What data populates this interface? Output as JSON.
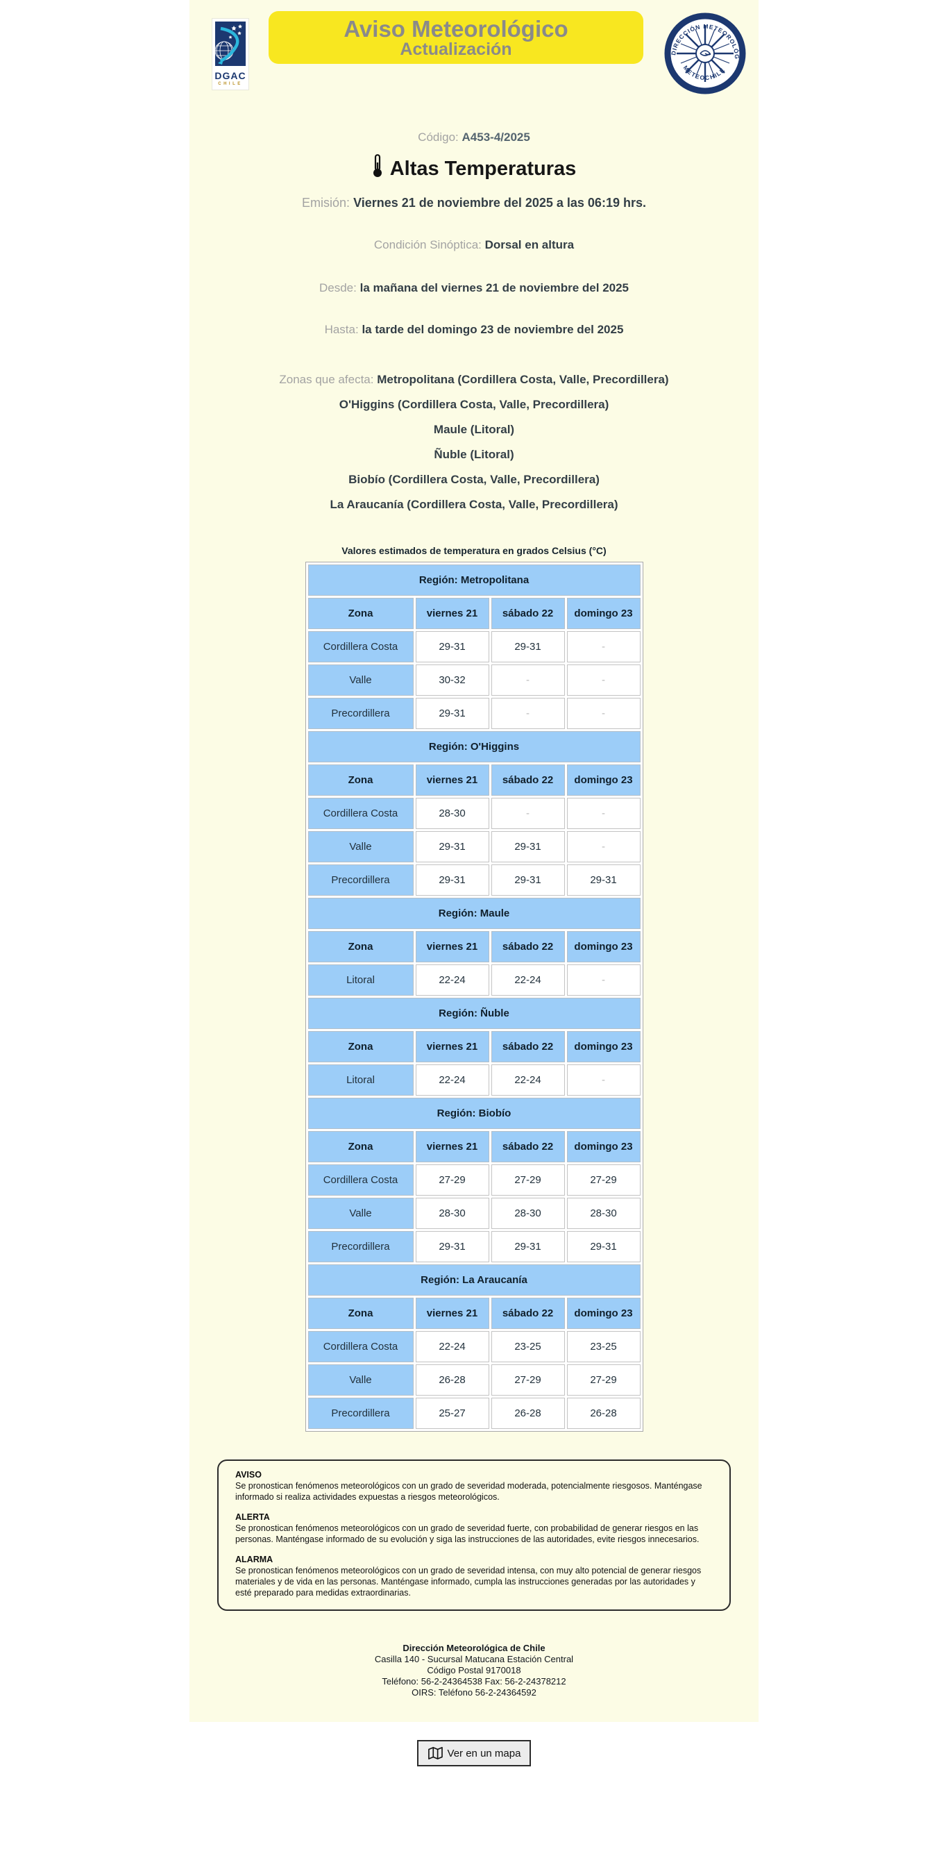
{
  "header": {
    "dgac_logo": {
      "name": "DGAC",
      "country": "CHILE"
    },
    "banner": {
      "title": "Aviso Meteorológico",
      "subtitle": "Actualización"
    },
    "meteochile_logo": {
      "ring_text_top": "DIRECCIÓN METEOROLÓGICA",
      "ring_text_bottom": "METEOCHILE"
    }
  },
  "advisory": {
    "code_label": "Código:",
    "code_value": "A453-4/2025",
    "title": "Altas Temperaturas",
    "emission_label": "Emisión:",
    "emission_value": "Viernes 21 de noviembre del 2025 a las 06:19 hrs.",
    "synoptic_label": "Condición Sinóptica:",
    "synoptic_value": "Dorsal en altura",
    "from_label": "Desde:",
    "from_value": "la mañana del viernes 21 de noviembre del 2025",
    "until_label": "Hasta:",
    "until_value": "la tarde del domingo 23 de noviembre del 2025",
    "zones_label": "Zonas que afecta:",
    "zones": [
      "Metropolitana (Cordillera Costa, Valle, Precordillera)",
      "O'Higgins (Cordillera Costa, Valle, Precordillera)",
      "Maule (Litoral)",
      "Ñuble (Litoral)",
      "Biobío (Cordillera Costa, Valle, Precordillera)",
      "La Araucanía (Cordillera Costa, Valle, Precordillera)"
    ]
  },
  "table": {
    "caption": "Valores estimados de temperatura en grados Celsius (°C)",
    "columns": [
      "Zona",
      "viernes 21",
      "sábado 22",
      "domingo 23"
    ],
    "regions": [
      {
        "name": "Región: Metropolitana",
        "rows": [
          [
            "Cordillera Costa",
            "29-31",
            "29-31",
            "-"
          ],
          [
            "Valle",
            "30-32",
            "-",
            "-"
          ],
          [
            "Precordillera",
            "29-31",
            "-",
            "-"
          ]
        ]
      },
      {
        "name": "Región: O'Higgins",
        "rows": [
          [
            "Cordillera Costa",
            "28-30",
            "-",
            "-"
          ],
          [
            "Valle",
            "29-31",
            "29-31",
            "-"
          ],
          [
            "Precordillera",
            "29-31",
            "29-31",
            "29-31"
          ]
        ]
      },
      {
        "name": "Región: Maule",
        "rows": [
          [
            "Litoral",
            "22-24",
            "22-24",
            "-"
          ]
        ]
      },
      {
        "name": "Región: Ñuble",
        "rows": [
          [
            "Litoral",
            "22-24",
            "22-24",
            "-"
          ]
        ]
      },
      {
        "name": "Región: Biobío",
        "rows": [
          [
            "Cordillera Costa",
            "27-29",
            "27-29",
            "27-29"
          ],
          [
            "Valle",
            "28-30",
            "28-30",
            "28-30"
          ],
          [
            "Precordillera",
            "29-31",
            "29-31",
            "29-31"
          ]
        ]
      },
      {
        "name": "Región: La Araucanía",
        "rows": [
          [
            "Cordillera Costa",
            "22-24",
            "23-25",
            "23-25"
          ],
          [
            "Valle",
            "26-28",
            "27-29",
            "27-29"
          ],
          [
            "Precordillera",
            "25-27",
            "26-28",
            "26-28"
          ]
        ]
      }
    ]
  },
  "definitions": [
    {
      "term": "AVISO",
      "text": "Se pronostican fenómenos meteorológicos con un grado de severidad moderada, potencialmente riesgosos. Manténgase informado si realiza actividades expuestas a riesgos meteorológicos."
    },
    {
      "term": "ALERTA",
      "text": "Se pronostican fenómenos meteorológicos con un grado de severidad fuerte, con probabilidad de generar riesgos en las personas. Manténgase informado de su evolución y siga las instrucciones de las autoridades, evite riesgos innecesarios."
    },
    {
      "term": "ALARMA",
      "text": "Se pronostican fenómenos meteorológicos con un grado de severidad intensa, con muy alto potencial de generar riesgos materiales y de vida en las personas. Manténgase informado, cumpla las instrucciones generadas por las autoridades y esté preparado para medidas extraordinarias."
    }
  ],
  "footer": {
    "org": "Dirección Meteorológica de Chile",
    "lines": [
      "Casilla 140 - Sucursal Matucana Estación Central",
      "Código Postal 9170018",
      "Teléfono: 56-2-24364538 Fax: 56-2-24378212",
      "OIRS: Teléfono 56-2-24364592"
    ]
  },
  "map_button": {
    "label": "Ver en un mapa",
    "icon": "map-icon"
  },
  "colors": {
    "sheet_background": "#fcfce5",
    "banner_yellow": "#f8e720",
    "banner_text": "#8a8a8a",
    "table_blue": "#9ccdf8",
    "brand_navy": "#1c3870",
    "swoosh_cyan": "#2cb7dc"
  }
}
